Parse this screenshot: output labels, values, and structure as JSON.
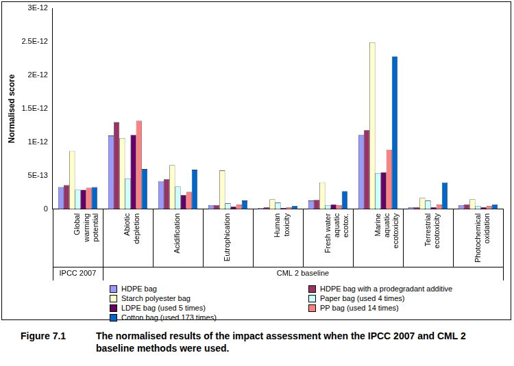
{
  "chart_data": {
    "type": "bar",
    "title": "Figure 7.1",
    "subtitle": "The normalised results of the impact assessment when the IPCC 2007 and CML 2 baseline methods were used.",
    "y_label": "Normalised score",
    "categories": [
      "Global warming potential",
      "Abiotic depletion",
      "Acidification",
      "Eutrophication",
      "Human toxicity",
      "Fresh water aquatic ecotox.",
      "Marine aquatic ecotoxicity",
      "Terrestrial ecotoxicity",
      "Photochemical oxidation"
    ],
    "category_groups": [
      {
        "name": "IPCC 2007",
        "categories": [
          "Global warming potential"
        ]
      },
      {
        "name": "CML 2 baseline",
        "categories": [
          "Abiotic depletion",
          "Acidification",
          "Eutrophication",
          "Human toxicity",
          "Fresh water aquatic ecotox.",
          "Marine aquatic ecotoxicity",
          "Terrestrial ecotoxicity",
          "Photochemical oxidation"
        ]
      }
    ],
    "series": [
      {
        "name": "HDPE bag",
        "color": "#9999ff",
        "values": [
          3.3e-13,
          1.1e-12,
          4.2e-13,
          6e-14,
          2e-14,
          1.3e-13,
          1.11e-12,
          3e-14,
          6e-14
        ]
      },
      {
        "name": "HDPE bag with a prodegradant additive",
        "color": "#993366",
        "values": [
          3.6e-13,
          1.3e-12,
          4.5e-13,
          6e-14,
          3e-14,
          1.4e-13,
          1.18e-12,
          3e-14,
          7e-14
        ]
      },
      {
        "name": "Starch polyester bag",
        "color": "#ffffcc",
        "values": [
          8.7e-13,
          1.06e-12,
          6.6e-13,
          5.8e-13,
          1.5e-13,
          4e-13,
          2.49e-12,
          1.7e-13,
          1.5e-13
        ]
      },
      {
        "name": "Paper bag (used 4 times)",
        "color": "#ccffff",
        "values": [
          2.9e-13,
          4.6e-13,
          3.4e-13,
          9e-14,
          1e-13,
          6e-14,
          5.4e-13,
          1.3e-13,
          5e-14
        ]
      },
      {
        "name": "LDPE bag (used 5 times)",
        "color": "#660066",
        "values": [
          2.9e-13,
          1.11e-12,
          2.1e-13,
          4e-14,
          2e-14,
          7e-14,
          5.5e-13,
          3e-14,
          3e-14
        ]
      },
      {
        "name": "PP bag (used 14 times)",
        "color": "#ff8080",
        "values": [
          3.2e-13,
          1.32e-12,
          2.6e-13,
          7e-14,
          3e-14,
          6e-14,
          8.9e-13,
          7e-14,
          5e-14
        ]
      },
      {
        "name": "Cotton bag (used 173 times)",
        "color": "#0066cc",
        "values": [
          3.3e-13,
          6e-13,
          5.9e-13,
          1.3e-13,
          5e-14,
          2.7e-13,
          2.28e-12,
          4e-13,
          7e-14
        ]
      }
    ],
    "ylim": [
      0,
      3e-12
    ],
    "yticks": [
      0,
      {
        "value": 5e-13,
        "label": "5E-13"
      },
      {
        "value": 1e-12,
        "label": "1E-12"
      },
      {
        "value": 1.5e-12,
        "label": "1.5E-12"
      },
      {
        "value": 2e-12,
        "label": "2E-12"
      },
      {
        "value": 2.5e-12,
        "label": "2.5E-12"
      },
      {
        "value": 3e-12,
        "label": "3E-12"
      }
    ],
    "grid": false,
    "legend": "bottom",
    "data_labels": false
  }
}
